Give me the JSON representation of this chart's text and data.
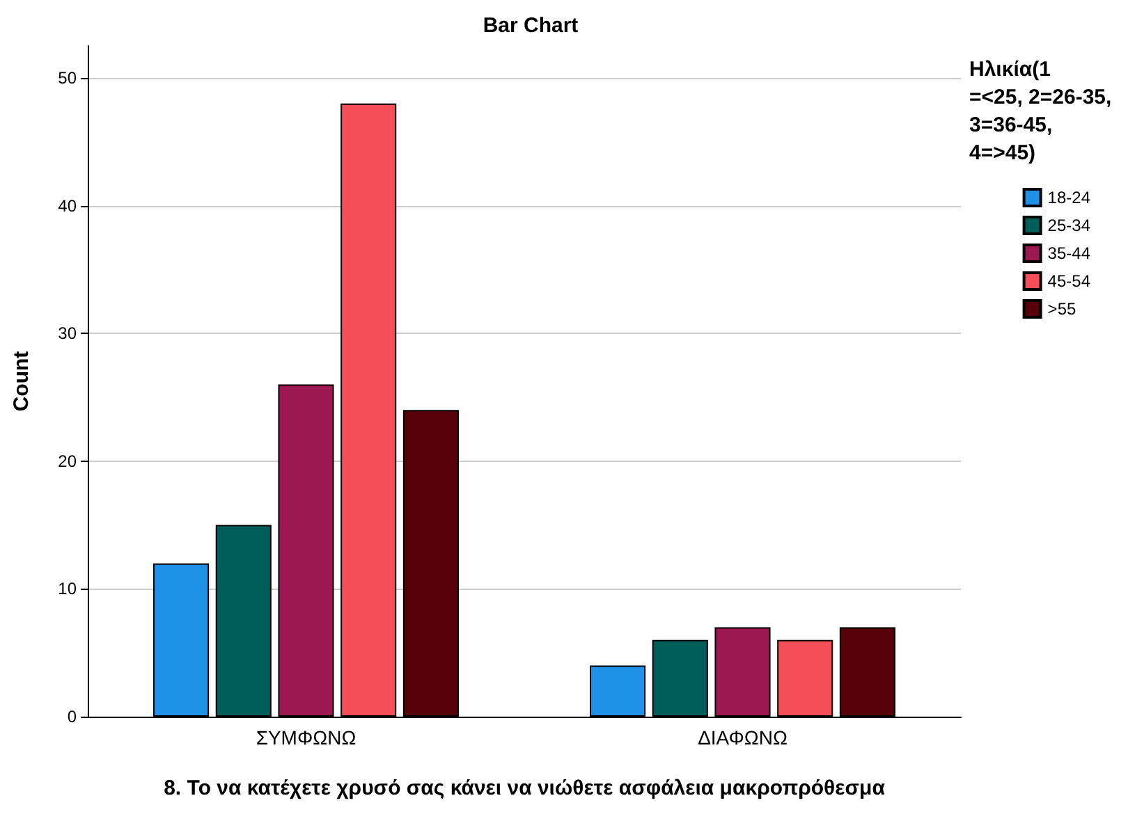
{
  "chart_data": {
    "type": "bar",
    "title": "Bar Chart",
    "xlabel": "8. Το να κατέχετε χρυσό σας κάνει να νιώθετε ασφάλεια μακροπρόθεσμα",
    "ylabel": "Count",
    "legend_title": "Ηλικία(1=<25, 2=26-35, 3=36-45, 4=>45)",
    "categories": [
      "ΣΥΜΦΩΝΩ",
      "ΔΙΑΦΩΝΩ"
    ],
    "series": [
      {
        "name": "18-24",
        "color": "#1f91e6",
        "values": [
          12,
          4
        ]
      },
      {
        "name": "25-34",
        "color": "#005e5a",
        "values": [
          15,
          6
        ]
      },
      {
        "name": "35-44",
        "color": "#9c1850",
        "values": [
          26,
          7
        ]
      },
      {
        "name": "45-54",
        "color": "#f44e58",
        "values": [
          48,
          6
        ]
      },
      {
        "name": ">55",
        "color": "#560009",
        "values": [
          24,
          7
        ]
      }
    ],
    "ylim": [
      0,
      52.5
    ],
    "yticks": [
      0,
      10,
      20,
      30,
      40,
      50
    ],
    "grid": "y",
    "legend": "right"
  }
}
